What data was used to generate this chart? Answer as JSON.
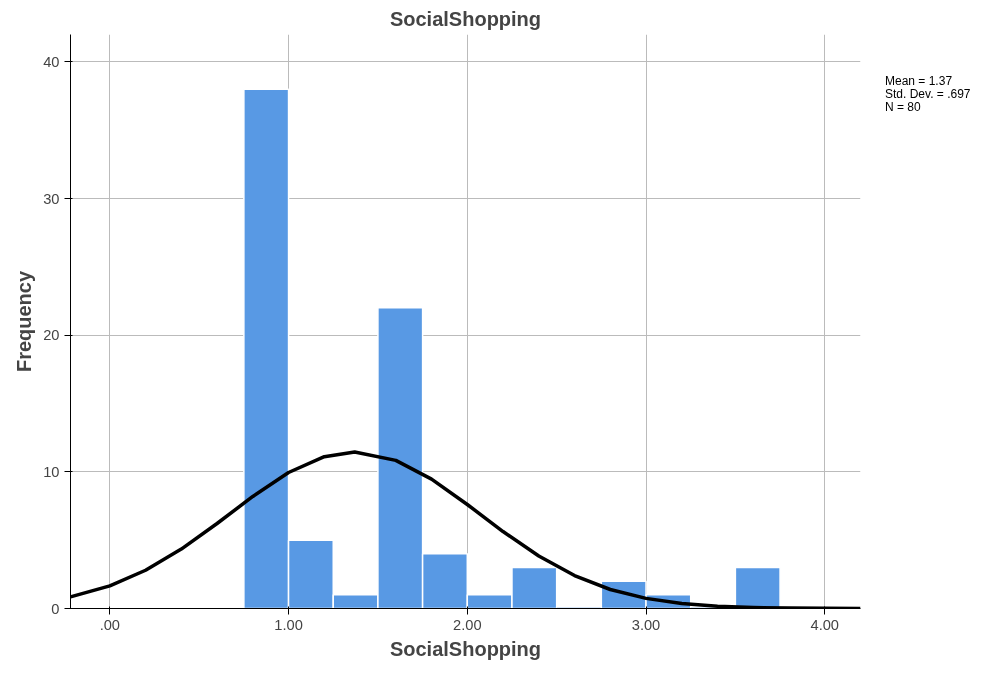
{
  "chart_data": {
    "type": "histogram",
    "title": "SocialShopping",
    "xlabel": "SocialShopping",
    "ylabel": "Frequency",
    "bins": [
      0.75,
      1.0,
      1.25,
      1.5,
      1.75,
      2.0,
      2.25,
      2.5,
      2.75,
      3.0,
      3.25,
      3.5,
      3.75
    ],
    "values": [
      38,
      5,
      1,
      22,
      4,
      1,
      3,
      0,
      2,
      1,
      0,
      3
    ],
    "color": "#5899e4",
    "series": [
      {
        "type": "line",
        "color": "#000000",
        "x": [
          -0.22,
          0.0,
          0.2,
          0.4,
          0.6,
          0.8,
          1.0,
          1.2,
          1.37,
          1.6,
          1.8,
          2.0,
          2.2,
          2.4,
          2.6,
          2.8,
          3.0,
          3.2,
          3.4,
          3.6,
          3.8,
          4.0,
          4.2
        ],
        "values": [
          0.85,
          1.66,
          2.8,
          4.35,
          6.22,
          8.2,
          9.95,
          11.11,
          11.45,
          10.84,
          9.47,
          7.61,
          5.63,
          3.84,
          2.41,
          1.39,
          0.74,
          0.36,
          0.16,
          0.07,
          0.03,
          0.01,
          0.0
        ]
      }
    ],
    "xlim": [
      -0.22,
      4.2
    ],
    "ylim": [
      0,
      42
    ],
    "xticks": [
      {
        "value": 0,
        "label": ".00"
      },
      {
        "value": 1,
        "label": "1.00"
      },
      {
        "value": 2,
        "label": "2.00"
      },
      {
        "value": 3,
        "label": "3.00"
      },
      {
        "value": 4,
        "label": "4.00"
      }
    ],
    "yticks": [
      0,
      10,
      20,
      30,
      40
    ],
    "grid": true,
    "marker": "none",
    "line_style": "solid",
    "annotations": [
      "Mean = 1.37",
      "Std. Dev. = .697",
      "N = 80"
    ]
  }
}
